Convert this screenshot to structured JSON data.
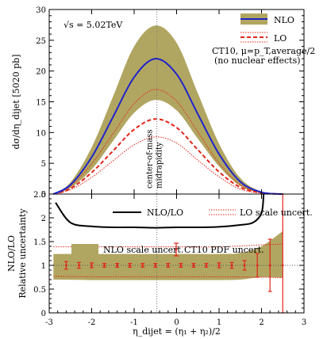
{
  "chart_data": [
    {
      "type": "line",
      "panel": "top",
      "ylabel": "dσ/dη_dijet [5020 pb]",
      "ylim": [
        0,
        30
      ],
      "y_ticks": [
        "0",
        "5",
        "10",
        "15",
        "20",
        "25",
        "30"
      ],
      "x_ticks": [
        "-3",
        "-2",
        "-1",
        "0",
        "1",
        "2",
        "3"
      ],
      "xlim": [
        -3,
        3
      ],
      "energy_label": "√s = 5.02TeV",
      "settings_line1": "CT10, μ=p_T,average/2",
      "settings_line2": "(no nuclear effects)",
      "annotation": "center-of-mass\nmidrapidity",
      "annotation_lines": [
        "center-of-mass",
        "midrapidity"
      ],
      "midrapidity_x": -0.465,
      "legend": [
        {
          "label": "NLO",
          "style": "blue solid line over olive band"
        },
        {
          "label": "LO",
          "style": "red dashed line between red dotted lines"
        }
      ],
      "series": [
        {
          "name": "NLO",
          "color": "#1f24c9",
          "x": [
            -2.9,
            -2.5,
            -2.0,
            -1.5,
            -1.0,
            -0.5,
            0.0,
            0.5,
            1.0,
            1.5,
            2.0,
            2.5
          ],
          "y": [
            0.0,
            1.5,
            6.0,
            12.5,
            19.0,
            22.0,
            19.5,
            13.0,
            6.5,
            2.0,
            0.3,
            0.0
          ],
          "band_low": [
            0.0,
            1.0,
            4.0,
            8.6,
            13.2,
            15.3,
            13.6,
            9.0,
            4.5,
            1.3,
            0.2,
            0.0
          ],
          "band_high": [
            0.0,
            1.9,
            7.6,
            15.8,
            24.0,
            27.4,
            24.6,
            16.4,
            8.2,
            2.6,
            0.4,
            0.0
          ]
        },
        {
          "name": "LO",
          "color": "#e0261a",
          "x": [
            -2.9,
            -2.5,
            -2.0,
            -1.5,
            -1.0,
            -0.5,
            0.0,
            0.5,
            1.0,
            1.5,
            2.0,
            2.5
          ],
          "y": [
            0.0,
            0.9,
            3.5,
            7.0,
            10.5,
            12.2,
            10.8,
            7.2,
            3.6,
            1.1,
            0.2,
            0.0
          ],
          "band_low": [
            0.0,
            0.7,
            2.7,
            5.4,
            8.0,
            9.3,
            8.3,
            5.5,
            2.8,
            0.8,
            0.15,
            0.0
          ],
          "band_high": [
            0.0,
            1.3,
            4.9,
            9.8,
            14.7,
            17.0,
            15.1,
            10.1,
            5.0,
            1.5,
            0.25,
            0.0
          ]
        }
      ]
    },
    {
      "type": "line",
      "panel": "bottom",
      "ylabel_line1": "NLO/LO",
      "ylabel_line2": "Relative uncertainty",
      "ylim": [
        0,
        2.5
      ],
      "y_ticks": [
        "0",
        "0.5",
        "1",
        "1.5",
        "2",
        "2.5"
      ],
      "x_ticks": [
        "-3",
        "-2",
        "-1",
        "0",
        "1",
        "2",
        "3"
      ],
      "xlim": [
        -3,
        3
      ],
      "xlabel": "η_dijet = (η₁ + η₂)/2",
      "reference_line_y": 1,
      "legend": [
        {
          "label": "NLO/LO",
          "style": "black solid"
        },
        {
          "label": "LO scale uncert.",
          "style": "red dotted"
        },
        {
          "label": "NLO scale uncert.",
          "style": "olive band"
        },
        {
          "label": "CT10 PDF uncert.",
          "style": "red error bars"
        }
      ],
      "series": [
        {
          "name": "NLO/LO",
          "color": "#000000",
          "x": [
            -2.85,
            -2.5,
            -2.0,
            -1.5,
            -1.0,
            -0.5,
            0.0,
            0.5,
            1.0,
            1.5,
            1.8,
            2.0,
            2.05
          ],
          "y": [
            2.32,
            1.9,
            1.82,
            1.8,
            1.8,
            1.79,
            1.8,
            1.8,
            1.81,
            1.85,
            1.9,
            2.1,
            2.5
          ]
        },
        {
          "name": "LO scale uncert.",
          "color": "#e0261a",
          "x": [
            -2.9,
            -2.0,
            -1.0,
            0.0,
            1.0,
            2.0,
            2.5
          ],
          "upper": [
            1.39,
            1.39,
            1.39,
            1.39,
            1.39,
            1.43,
            1.45
          ],
          "lower": [
            0.77,
            0.76,
            0.76,
            0.76,
            0.76,
            0.75,
            0.74
          ]
        },
        {
          "name": "NLO scale uncert.",
          "color": "#b1a661",
          "x": [
            -2.9,
            -2.0,
            -1.0,
            0.0,
            1.0,
            1.5,
            2.0,
            2.5
          ],
          "upper": [
            1.24,
            1.24,
            1.24,
            1.24,
            1.24,
            1.26,
            1.4,
            1.72
          ],
          "lower": [
            0.7,
            0.69,
            0.69,
            0.69,
            0.69,
            0.7,
            0.75,
            0.74
          ]
        },
        {
          "name": "CT10 PDF uncert.",
          "color": "#e0261a",
          "x": [
            -2.6,
            -2.3,
            -2.0,
            -1.7,
            -1.4,
            -1.1,
            -0.8,
            -0.5,
            -0.2,
            0.1,
            0.4,
            0.7,
            1.0,
            1.3,
            1.6,
            1.9,
            2.2,
            2.5
          ],
          "y": [
            1.0,
            1.0,
            1.0,
            1.0,
            1.0,
            1.0,
            1.0,
            1.0,
            1.0,
            1.0,
            1.0,
            1.0,
            1.0,
            1.0,
            1.0,
            1.0,
            1.0,
            1.0
          ],
          "err": [
            0.08,
            0.06,
            0.05,
            0.04,
            0.04,
            0.04,
            0.04,
            0.04,
            0.04,
            0.04,
            0.04,
            0.04,
            0.05,
            0.06,
            0.1,
            0.25,
            0.55,
            1.5
          ]
        }
      ]
    }
  ],
  "colors": {
    "nlo": "#1f24c9",
    "lo": "#e0261a",
    "band": "#b1a661",
    "axis": "#000000",
    "mid": "#777777"
  }
}
